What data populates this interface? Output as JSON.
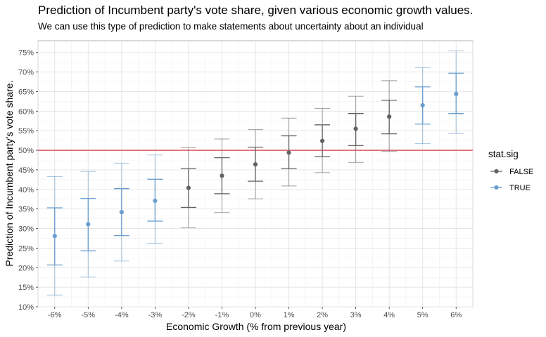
{
  "chart_data": {
    "type": "scatter",
    "title": "Prediction of Incumbent party's vote share, given various economic growth values.",
    "subtitle": "We can use this type of prediction to make statements about uncertainty about an individual",
    "xlabel": "Economic Growth (% from previous year)",
    "ylabel": "Prediction of Incumbent party's vote share.",
    "categories": [
      "-6%",
      "-5%",
      "-4%",
      "-3%",
      "-2%",
      "-1%",
      "0%",
      "1%",
      "2%",
      "3%",
      "4%",
      "5%",
      "6%"
    ],
    "ylim": [
      0.1,
      0.78
    ],
    "yticks": [
      0.1,
      0.15,
      0.2,
      0.25,
      0.3,
      0.35,
      0.4,
      0.45,
      0.5,
      0.55,
      0.6,
      0.65,
      0.7,
      0.75
    ],
    "ytick_labels": [
      "10%",
      "15%",
      "20%",
      "25%",
      "30%",
      "35%",
      "40%",
      "45%",
      "50%",
      "55%",
      "60%",
      "65%",
      "70%",
      "75%"
    ],
    "reference_line": {
      "y": 0.5,
      "color": "#e0707a"
    },
    "points": {
      "estimate": [
        0.281,
        0.311,
        0.342,
        0.371,
        0.404,
        0.435,
        0.464,
        0.494,
        0.524,
        0.555,
        0.586,
        0.615,
        0.644
      ],
      "inner_low": [
        0.207,
        0.243,
        0.282,
        0.319,
        0.354,
        0.389,
        0.421,
        0.453,
        0.484,
        0.512,
        0.542,
        0.567,
        0.594
      ],
      "inner_high": [
        0.353,
        0.377,
        0.402,
        0.426,
        0.453,
        0.481,
        0.508,
        0.537,
        0.565,
        0.594,
        0.628,
        0.662,
        0.697
      ],
      "outer_low": [
        0.13,
        0.176,
        0.217,
        0.262,
        0.302,
        0.341,
        0.376,
        0.409,
        0.443,
        0.469,
        0.497,
        0.517,
        0.543
      ],
      "outer_high": [
        0.433,
        0.446,
        0.467,
        0.488,
        0.507,
        0.529,
        0.553,
        0.582,
        0.607,
        0.638,
        0.678,
        0.711,
        0.754
      ],
      "stat_sig": [
        "TRUE",
        "TRUE",
        "TRUE",
        "TRUE",
        "FALSE",
        "FALSE",
        "FALSE",
        "FALSE",
        "FALSE",
        "FALSE",
        "FALSE",
        "TRUE",
        "TRUE"
      ]
    },
    "grid": true,
    "legend": {
      "title": "stat.sig",
      "placement": "right",
      "entries": [
        {
          "label": "FALSE",
          "color": "#636363"
        },
        {
          "label": "TRUE",
          "color": "#6a9ece"
        }
      ]
    }
  }
}
